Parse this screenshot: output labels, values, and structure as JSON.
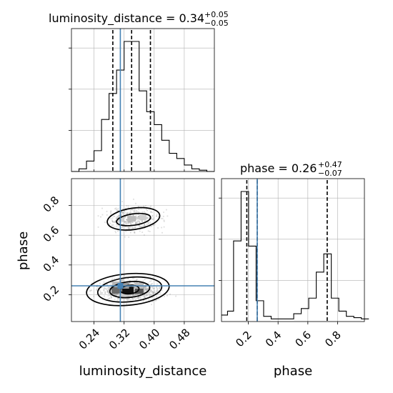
{
  "chart_data": {
    "type": "corner",
    "parameters": [
      "luminosity_distance",
      "phase"
    ],
    "truth": {
      "luminosity_distance": 0.31,
      "phase": 0.26
    },
    "titles": [
      {
        "param": "luminosity_distance",
        "text": "luminosity_distance = 0.34",
        "plus": "+0.05",
        "minus": "−0.05"
      },
      {
        "param": "phase",
        "text": "phase = 0.26",
        "plus": "+0.47",
        "minus": "−0.07"
      }
    ],
    "xlabels": [
      "luminosity_distance",
      "phase"
    ],
    "ylabel": "phase",
    "ranges": {
      "luminosity_distance": [
        0.18,
        0.56
      ],
      "phase": [
        0.02,
        0.98
      ]
    },
    "ticks": {
      "luminosity_distance": [
        "0.24",
        "0.32",
        "0.40",
        "0.48"
      ],
      "phase": [
        "0.2",
        "0.4",
        "0.6",
        "0.8"
      ]
    },
    "grid": true,
    "histogram_luminosity_distance": {
      "bin_edges": [
        0.18,
        0.2,
        0.22,
        0.24,
        0.26,
        0.28,
        0.3,
        0.32,
        0.34,
        0.36,
        0.38,
        0.4,
        0.42,
        0.44,
        0.46,
        0.48,
        0.5,
        0.52,
        0.54,
        0.56
      ],
      "counts": [
        0.0,
        0.02,
        0.08,
        0.16,
        0.4,
        0.6,
        0.78,
        1.0,
        1.0,
        0.62,
        0.46,
        0.36,
        0.24,
        0.14,
        0.1,
        0.05,
        0.02,
        0.01,
        0.0
      ],
      "quantiles": [
        0.29,
        0.34,
        0.39
      ]
    },
    "histogram_phase": {
      "bin_edges": [
        0.02,
        0.0605,
        0.101,
        0.1515,
        0.202,
        0.2525,
        0.303,
        0.3535,
        0.404,
        0.4545,
        0.505,
        0.5555,
        0.606,
        0.6565,
        0.707,
        0.7575,
        0.808,
        0.8585,
        0.909,
        0.9595,
        1.01
      ],
      "counts": [
        0.05,
        0.08,
        0.62,
        1.0,
        0.58,
        0.16,
        0.04,
        0.02,
        0.02,
        0.02,
        0.06,
        0.1,
        0.18,
        0.38,
        0.52,
        0.18,
        0.08,
        0.04,
        0.03,
        0.02
      ],
      "quantiles": [
        0.19,
        0.26,
        0.73
      ]
    },
    "density_peaks": [
      {
        "luminosity_distance": 0.33,
        "phase": 0.23
      },
      {
        "luminosity_distance": 0.34,
        "phase": 0.71
      }
    ]
  }
}
